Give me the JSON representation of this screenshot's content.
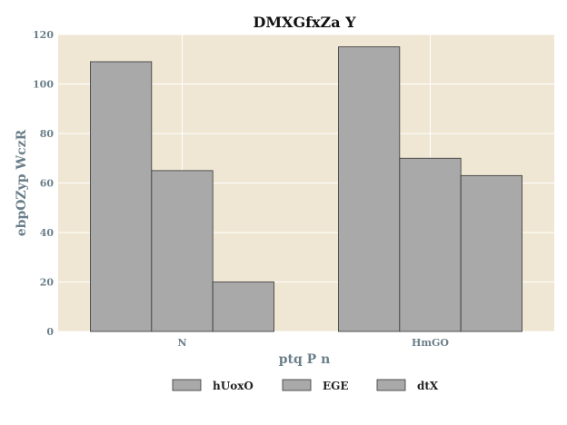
{
  "chart_data": {
    "type": "bar",
    "title": "DMXGfxZa Y",
    "xlabel": "ptq P n",
    "ylabel": "ebpOZyp  WczR",
    "categories": [
      "N",
      "HmGO"
    ],
    "series": [
      {
        "name": "hUoxO",
        "values": [
          109,
          115
        ]
      },
      {
        "name": "EGE",
        "values": [
          65,
          70
        ]
      },
      {
        "name": "dtX",
        "values": [
          20,
          63
        ]
      }
    ],
    "ylim": [
      0,
      120
    ],
    "yticks": [
      0,
      20,
      40,
      60,
      80,
      100,
      120
    ],
    "grid": true,
    "legend_position": "bottom",
    "colors": {
      "plot_background": "#efe7d3",
      "bar_fill": "#a9a9a9",
      "bar_stroke": "#333333",
      "grid": "#ffffff"
    }
  }
}
